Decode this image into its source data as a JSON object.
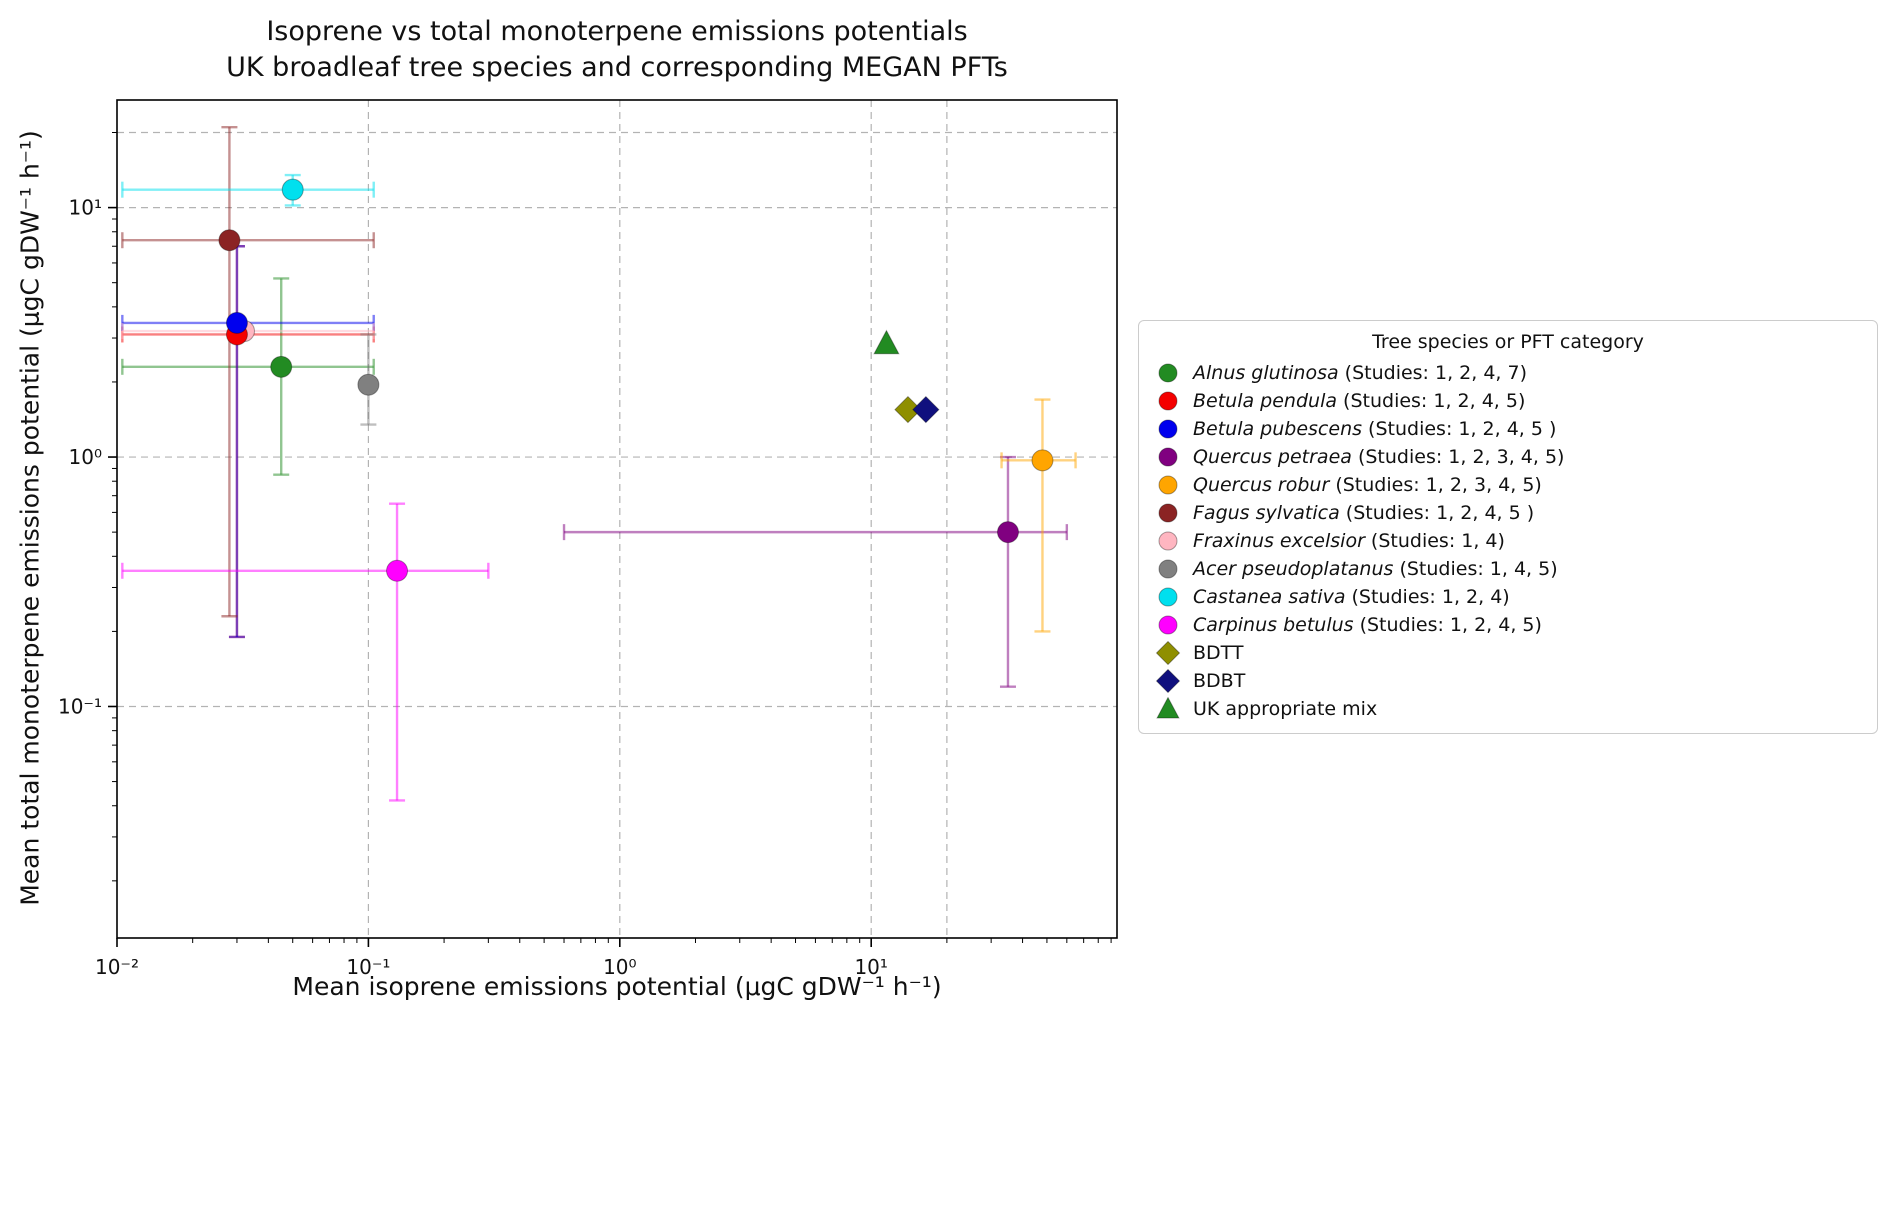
{
  "title": {
    "line1": "Isoprene vs total monoterpene emissions potentials",
    "line2": "UK broadleaf tree species and corresponding MEGAN PFTs"
  },
  "axes": {
    "xlabel": "Mean isoprene emissions potential (μgC gDW⁻¹ h⁻¹)",
    "ylabel": "Mean total monoterpene emissions potential (μgC gDW⁻¹ h⁻¹)"
  },
  "legend": {
    "title": "Tree species or PFT category"
  },
  "chart_data": {
    "type": "scatter",
    "xscale": "log",
    "yscale": "log",
    "xlim": [
      0.01,
      95
    ],
    "ylim": [
      0.0118,
      27
    ],
    "grid": true,
    "grid_color": "#b3b3b3",
    "x_gridlines": [
      0.1,
      1,
      10,
      20
    ],
    "y_gridlines": [
      0.1,
      1,
      10,
      20
    ],
    "x_ticks": [
      {
        "v": 0.01,
        "label": "10⁻²"
      },
      {
        "v": 0.1,
        "label": "10⁻¹"
      },
      {
        "v": 1,
        "label": "10⁰"
      },
      {
        "v": 10,
        "label": "10¹"
      }
    ],
    "y_ticks": [
      {
        "v": 0.1,
        "label": "10⁻¹"
      },
      {
        "v": 1,
        "label": "10⁰"
      },
      {
        "v": 10,
        "label": "10¹"
      }
    ],
    "series": [
      {
        "key": "alnus-glutinosa",
        "name": "Alnus glutinosa",
        "studies": "(Studies: 1, 2, 4, 7)",
        "italic": true,
        "marker": "circle",
        "color": "#228B22",
        "x": 0.045,
        "y": 2.3,
        "xerr": [
          0.0105,
          0.105
        ],
        "yerr": [
          0.85,
          5.2
        ]
      },
      {
        "key": "betula-pendula",
        "name": "Betula pendula",
        "studies": "(Studies:  1, 2, 4, 5)",
        "italic": true,
        "marker": "circle",
        "color": "#f40000",
        "x": 0.03,
        "y": 3.1,
        "xerr": [
          0.0105,
          0.105
        ],
        "yerr": [
          0.19,
          7.0
        ]
      },
      {
        "key": "betula-pubescens",
        "name": "Betula pubescens",
        "studies": "(Studies: 1, 2, 4, 5 )",
        "italic": true,
        "marker": "circle",
        "color": "#0000ee",
        "x": 0.03,
        "y": 3.45,
        "xerr": [
          0.0105,
          0.105
        ],
        "yerr": [
          0.19,
          7.0
        ]
      },
      {
        "key": "quercus-petraea",
        "name": "Quercus petraea",
        "studies": "(Studies: 1, 2, 3, 4, 5)",
        "italic": true,
        "marker": "circle",
        "color": "#800080",
        "x": 35,
        "y": 0.5,
        "xerr": [
          0.6,
          60
        ],
        "yerr": [
          0.12,
          1.0
        ]
      },
      {
        "key": "quercus-robur",
        "name": "Quercus robur",
        "studies": "(Studies: 1, 2, 3, 4, 5)",
        "italic": true,
        "marker": "circle",
        "color": "#ffa500",
        "x": 48,
        "y": 0.97,
        "xerr": [
          33,
          65
        ],
        "yerr": [
          0.2,
          1.7
        ]
      },
      {
        "key": "fagus-sylvatica",
        "name": "Fagus sylvatica",
        "studies": "(Studies: 1, 2, 4, 5 )",
        "italic": true,
        "marker": "circle",
        "color": "#8b2323",
        "x": 0.028,
        "y": 7.4,
        "xerr": [
          0.0105,
          0.105
        ],
        "yerr": [
          0.23,
          21
        ]
      },
      {
        "key": "fraxinus-excelsior",
        "name": "Fraxinus excelsior",
        "studies": "(Studies: 1, 4)",
        "italic": true,
        "marker": "circle",
        "color": "#ffb6c1",
        "x": 0.032,
        "y": 3.2,
        "xerr": [
          0.0105,
          0.105
        ],
        "yerr": null,
        "zorder": 0
      },
      {
        "key": "acer-pseudoplatanus",
        "name": "Acer pseudoplatanus",
        "studies": "(Studies: 1, 4, 5)",
        "italic": true,
        "marker": "circle",
        "color": "#808080",
        "x": 0.1,
        "y": 1.95,
        "xerr": null,
        "yerr": [
          1.35,
          3.1
        ]
      },
      {
        "key": "castanea-sativa",
        "name": "Castanea sativa",
        "studies": "(Studies: 1, 2, 4)",
        "italic": true,
        "marker": "circle",
        "color": "#00e0ee",
        "x": 0.05,
        "y": 11.8,
        "xerr": [
          0.0105,
          0.105
        ],
        "yerr": [
          10.2,
          13.5
        ]
      },
      {
        "key": "carpinus-betulus",
        "name": "Carpinus betulus",
        "studies": "(Studies: 1, 2, 4, 5)",
        "italic": true,
        "marker": "circle",
        "color": "#ff00ff",
        "x": 0.13,
        "y": 0.35,
        "xerr": [
          0.0105,
          0.3
        ],
        "yerr": [
          0.042,
          0.65
        ]
      },
      {
        "key": "bdtt",
        "name": "BDTT",
        "studies": "",
        "italic": false,
        "marker": "diamond",
        "color": "#8f8f00",
        "x": 14,
        "y": 1.55,
        "xerr": null,
        "yerr": null
      },
      {
        "key": "bdbt",
        "name": "BDBT",
        "studies": "",
        "italic": false,
        "marker": "diamond",
        "color": "#10107e",
        "x": 16.5,
        "y": 1.55,
        "xerr": null,
        "yerr": null
      },
      {
        "key": "uk-appropriate-mix",
        "name": "UK appropriate mix",
        "studies": "",
        "italic": false,
        "marker": "triangle",
        "color": "#228B22",
        "x": 11.5,
        "y": 2.85,
        "xerr": null,
        "yerr": null
      }
    ]
  }
}
